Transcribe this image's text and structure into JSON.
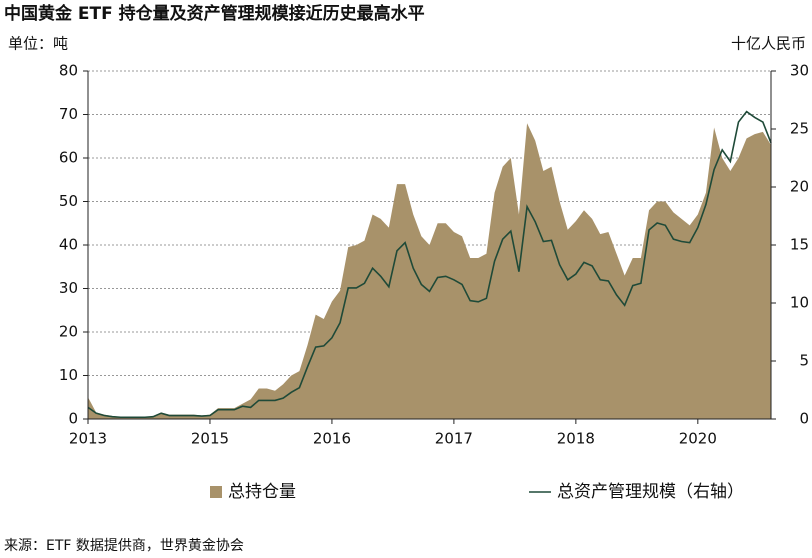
{
  "chart_data": {
    "type": "area",
    "title": "中国黄金 ETF 持仓量及资产管理规模接近历史最高水平",
    "y_label": "单位：吨",
    "y2_label": "十亿人民币",
    "source": "来源：ETF 数据提供商，世界黄金协会",
    "categories": [
      "2013",
      null,
      null,
      null,
      null,
      null,
      null,
      null,
      null,
      null,
      null,
      null,
      null,
      null,
      null,
      "2015",
      null,
      null,
      null,
      null,
      null,
      null,
      null,
      null,
      null,
      null,
      null,
      null,
      null,
      null,
      "2016",
      null,
      null,
      null,
      null,
      null,
      null,
      null,
      null,
      null,
      null,
      null,
      null,
      null,
      null,
      "2017",
      null,
      null,
      null,
      null,
      null,
      null,
      null,
      null,
      null,
      null,
      null,
      null,
      null,
      null,
      "2018",
      null,
      null,
      null,
      null,
      null,
      null,
      null,
      null,
      null,
      null,
      null,
      null,
      null,
      null,
      "2020",
      null,
      null,
      null,
      null,
      null,
      null,
      null,
      null,
      null
    ],
    "series": [
      {
        "name": "总持仓量",
        "type": "area",
        "color": "#a8926a",
        "values": [
          5,
          1.5,
          1,
          0.7,
          0.5,
          0.5,
          0.5,
          0.5,
          0.5,
          1.5,
          1,
          1,
          1,
          1,
          0.8,
          1,
          2.5,
          2.5,
          2.5,
          3.5,
          4.5,
          7,
          7,
          6.5,
          8,
          10,
          11,
          17,
          24,
          23,
          27,
          29.5,
          39.5,
          40,
          41,
          47,
          46,
          44,
          54,
          54,
          47,
          42,
          40,
          45,
          45,
          43,
          42,
          37,
          37,
          38,
          52,
          58,
          60,
          47,
          68,
          64,
          57,
          58,
          50,
          43.5,
          45.5,
          48,
          46,
          42.5,
          43,
          38,
          33,
          37,
          37,
          48,
          50,
          50,
          47.5,
          46,
          44.5,
          47,
          52,
          67,
          60,
          57,
          60,
          64.5,
          65.5,
          66,
          63
        ]
      },
      {
        "name": "总资产管理规模（右轴）",
        "type": "line",
        "axis": "y2",
        "color": "#1f4a38",
        "values": [
          1,
          0.5,
          0.3,
          0.2,
          0.15,
          0.15,
          0.15,
          0.15,
          0.2,
          0.5,
          0.3,
          0.3,
          0.3,
          0.3,
          0.25,
          0.3,
          0.8,
          0.8,
          0.8,
          1.1,
          1,
          1.6,
          1.6,
          1.6,
          1.8,
          2.3,
          2.7,
          4.5,
          6.2,
          6.3,
          7,
          8.3,
          11.3,
          11.3,
          11.7,
          13,
          12.3,
          11.4,
          14.5,
          15.2,
          13,
          11.6,
          11,
          12.2,
          12.3,
          12,
          11.6,
          10.2,
          10.1,
          10.4,
          13.6,
          15.5,
          16.2,
          12.7,
          18.3,
          17,
          15.3,
          15.4,
          13.3,
          12,
          12.5,
          13.5,
          13.2,
          12,
          11.9,
          10.7,
          9.8,
          11.5,
          11.7,
          16.3,
          16.9,
          16.7,
          15.5,
          15.3,
          15.2,
          16.5,
          18.5,
          21.5,
          23.2,
          22.2,
          25.6,
          26.5,
          26,
          25.6,
          23.8
        ]
      }
    ],
    "ylim": [
      0,
      80
    ],
    "yticks": [
      0,
      10,
      20,
      30,
      40,
      50,
      60,
      70,
      80
    ],
    "y2lim": [
      0,
      30
    ],
    "y2ticks": [
      0,
      5,
      10,
      15,
      20,
      25,
      30
    ],
    "grid": true
  }
}
